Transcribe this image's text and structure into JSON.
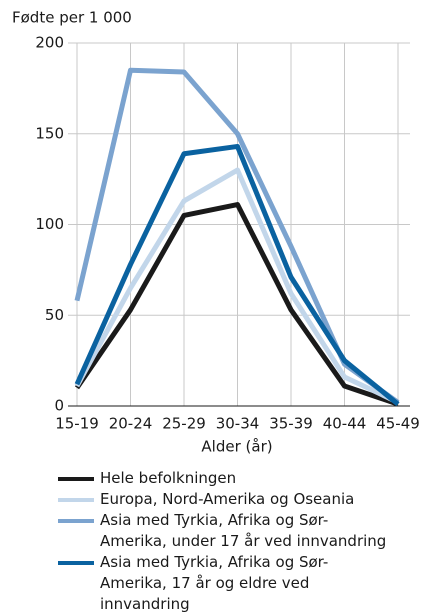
{
  "chart_data": {
    "type": "line",
    "y_label": "Fødte per 1 000",
    "x_label": "Alder (år)",
    "categories": [
      "15-19",
      "20-24",
      "25-29",
      "30-34",
      "35-39",
      "40-44",
      "45-49"
    ],
    "ylim": [
      0,
      200
    ],
    "yticks": [
      0,
      50,
      100,
      150,
      200
    ],
    "grid": true,
    "series": [
      {
        "name": "Hele befolkningen",
        "color": "#1a1a1a",
        "values": [
          10,
          53,
          105,
          111,
          53,
          11,
          1
        ]
      },
      {
        "name": "Europa, Nord-Amerika og Oseania",
        "color": "#c2d6ea",
        "values": [
          11,
          65,
          113,
          130,
          62,
          16,
          2
        ]
      },
      {
        "name": "Asia med Tyrkia, Afrika og Sør-Amerika, under 17 år ved innvandring",
        "color": "#7ba3cf",
        "values": [
          58,
          185,
          184,
          150,
          88,
          23,
          2
        ]
      },
      {
        "name": "Asia med Tyrkia, Afrika og Sør-Amerika, 17 år og eldre ved innvandring",
        "color": "#0a62a0",
        "values": [
          12,
          78,
          139,
          143,
          71,
          25,
          1
        ]
      }
    ]
  }
}
